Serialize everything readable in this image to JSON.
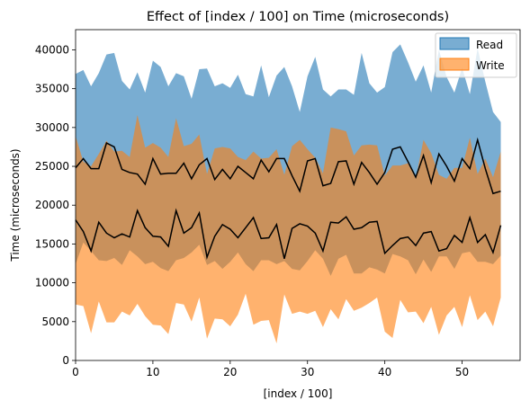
{
  "chart_data": {
    "type": "area",
    "title": "Effect of [index / 100] on Time (microseconds)",
    "xlabel": "[index / 100]",
    "ylabel": "Time (microseconds)",
    "xlim": [
      0,
      57.5
    ],
    "ylim": [
      0,
      42600
    ],
    "xticks": [
      0,
      10,
      20,
      30,
      40,
      50
    ],
    "yticks": [
      0,
      5000,
      10000,
      15000,
      20000,
      25000,
      30000,
      35000,
      40000
    ],
    "grid": false,
    "legend": "top-right",
    "x": [
      0,
      1,
      2,
      3,
      4,
      5,
      6,
      7,
      8,
      9,
      10,
      11,
      12,
      13,
      14,
      15,
      16,
      17,
      18,
      19,
      20,
      21,
      22,
      23,
      24,
      25,
      26,
      27,
      28,
      29,
      30,
      31,
      32,
      33,
      34,
      35,
      36,
      37,
      38,
      39,
      40,
      41,
      42,
      43,
      44,
      45,
      46,
      47,
      48,
      49,
      50,
      51,
      52,
      53,
      54,
      55
    ],
    "series": [
      {
        "name": "Read",
        "color": "#1f77b4",
        "mean": [
          24800,
          26000,
          24700,
          24700,
          28000,
          27500,
          24600,
          24200,
          24000,
          22700,
          26000,
          24000,
          24100,
          24100,
          25400,
          23400,
          25200,
          26000,
          23300,
          24600,
          23400,
          25000,
          24200,
          23400,
          25800,
          24300,
          26000,
          26000,
          23800,
          21800,
          25700,
          26000,
          22500,
          22800,
          25600,
          25700,
          22700,
          25500,
          24200,
          22700,
          24200,
          27200,
          27500,
          25600,
          23600,
          26400,
          22900,
          26600,
          25000,
          23100,
          26000,
          24700,
          28400,
          24700,
          21500,
          21800
        ],
        "low": [
          12400,
          15200,
          14100,
          12900,
          12800,
          13200,
          12300,
          14200,
          13400,
          12400,
          12700,
          11900,
          11500,
          12900,
          13200,
          13900,
          14900,
          12300,
          12800,
          11800,
          12700,
          13900,
          12400,
          11500,
          12900,
          12900,
          12400,
          12800,
          11800,
          11600,
          12800,
          14200,
          13100,
          10900,
          13100,
          13600,
          11200,
          11200,
          12000,
          11700,
          11200,
          13700,
          13400,
          12900,
          11100,
          13000,
          11400,
          13400,
          13400,
          11800,
          13800,
          14000,
          12700,
          12700,
          12400,
          13500
        ],
        "high": [
          36900,
          37400,
          35300,
          37000,
          39400,
          39600,
          36000,
          34900,
          37100,
          34500,
          38600,
          37800,
          35300,
          37000,
          36600,
          33700,
          37500,
          37600,
          35300,
          35700,
          35100,
          36800,
          34300,
          34000,
          38000,
          33900,
          36700,
          37800,
          35300,
          32000,
          36600,
          39100,
          34900,
          34000,
          34900,
          34900,
          34200,
          39600,
          35700,
          34500,
          35200,
          39700,
          40700,
          38400,
          35900,
          38000,
          34500,
          40000,
          36500,
          34500,
          37700,
          34300,
          40200,
          35900,
          32000,
          30700
        ]
      },
      {
        "name": "Write",
        "color": "#ff7f0e",
        "mean": [
          18100,
          16600,
          14100,
          17800,
          16400,
          15800,
          16300,
          15900,
          19300,
          17100,
          16000,
          15900,
          14700,
          19300,
          16400,
          17100,
          19000,
          13300,
          16000,
          17500,
          16900,
          15800,
          17100,
          18400,
          15700,
          15800,
          17500,
          13100,
          17000,
          17600,
          17300,
          16400,
          14100,
          17800,
          17700,
          18500,
          16900,
          17100,
          17800,
          17900,
          13800,
          14800,
          15700,
          15900,
          14800,
          16400,
          16600,
          14100,
          14400,
          16100,
          15200,
          18400,
          15200,
          16200,
          13900,
          17400
        ]
      }
    ],
    "write_band": {
      "low": [
        7200,
        7000,
        3500,
        7600,
        4900,
        4900,
        6300,
        5800,
        7300,
        5700,
        4600,
        4500,
        3400,
        7400,
        7200,
        5000,
        8100,
        2800,
        5400,
        5300,
        4400,
        5900,
        8600,
        4600,
        5100,
        5200,
        2200,
        8500,
        6000,
        6300,
        6000,
        6400,
        4300,
        6600,
        5300,
        7900,
        6400,
        6800,
        7400,
        8100,
        3700,
        2900,
        7800,
        6200,
        6300,
        4800,
        6900,
        3300,
        5800,
        6900,
        4300,
        8400,
        5200,
        6300,
        4400,
        8100
      ],
      "high": [
        28900,
        25600,
        25000,
        26600,
        28300,
        26900,
        27000,
        26200,
        31600,
        27400,
        28000,
        27400,
        26200,
        31200,
        27600,
        27900,
        29100,
        24000,
        27300,
        27500,
        27300,
        26200,
        25800,
        26900,
        26000,
        26100,
        27200,
        23900,
        27600,
        28400,
        27200,
        26100,
        24100,
        30000,
        29800,
        29500,
        26400,
        27700,
        27800,
        27700,
        23800,
        25100,
        25100,
        25400,
        23400,
        28400,
        26700,
        23900,
        23400,
        24800,
        24800,
        28700,
        24000,
        26000,
        23600,
        26900
      ]
    }
  }
}
